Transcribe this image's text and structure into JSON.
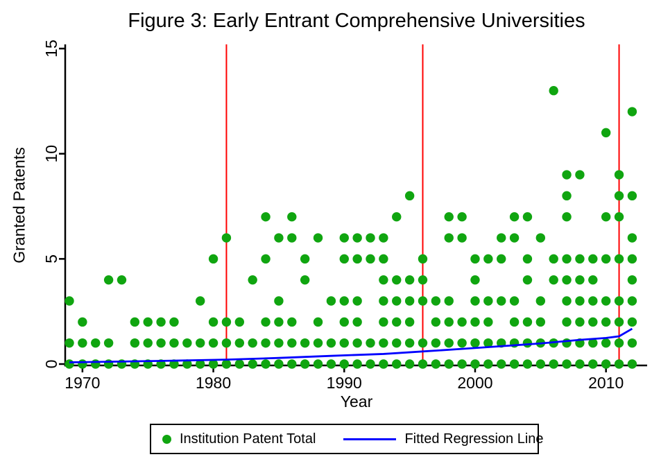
{
  "chart_data": {
    "type": "scatter",
    "title": "Figure 3: Early Entrant Comprehensive Universities",
    "xlabel": "Year",
    "ylabel": "Granted Patents",
    "xlim": [
      1968.5,
      2012.8
    ],
    "ylim": [
      0,
      15
    ],
    "x_ticks": [
      1970,
      1980,
      1990,
      2000,
      2010
    ],
    "y_ticks": [
      0,
      5,
      10,
      15
    ],
    "grid": "off",
    "legend_position": "bottom-center",
    "colors": {
      "scatter": "#10a510",
      "fit_line": "#0000ff",
      "vline": "#ff0000",
      "axis": "#000000",
      "background": "#ffffff"
    },
    "vlines": {
      "years": [
        1981,
        1996,
        2011
      ]
    },
    "scatter": {
      "name": "Institution Patent Total",
      "points_by_year": [
        [
          1969,
          [
            0,
            1,
            3
          ]
        ],
        [
          1970,
          [
            0,
            1,
            2
          ]
        ],
        [
          1971,
          [
            0,
            1
          ]
        ],
        [
          1972,
          [
            0,
            1,
            4
          ]
        ],
        [
          1973,
          [
            0,
            4
          ]
        ],
        [
          1974,
          [
            0,
            1,
            2
          ]
        ],
        [
          1975,
          [
            0,
            1,
            2
          ]
        ],
        [
          1976,
          [
            0,
            1,
            2
          ]
        ],
        [
          1977,
          [
            0,
            1,
            2
          ]
        ],
        [
          1978,
          [
            0,
            1
          ]
        ],
        [
          1979,
          [
            0,
            1,
            3
          ]
        ],
        [
          1980,
          [
            0,
            1,
            2,
            5
          ]
        ],
        [
          1981,
          [
            0,
            1,
            2,
            6
          ]
        ],
        [
          1982,
          [
            0,
            1,
            2
          ]
        ],
        [
          1983,
          [
            0,
            1,
            4
          ]
        ],
        [
          1984,
          [
            0,
            1,
            2,
            5,
            7
          ]
        ],
        [
          1985,
          [
            0,
            1,
            2,
            3,
            6
          ]
        ],
        [
          1986,
          [
            0,
            1,
            2,
            6,
            7
          ]
        ],
        [
          1987,
          [
            0,
            1,
            4,
            5
          ]
        ],
        [
          1988,
          [
            0,
            1,
            2,
            6
          ]
        ],
        [
          1989,
          [
            0,
            1,
            3
          ]
        ],
        [
          1990,
          [
            0,
            1,
            2,
            3,
            5,
            6
          ]
        ],
        [
          1991,
          [
            0,
            1,
            2,
            3,
            5,
            6
          ]
        ],
        [
          1992,
          [
            0,
            1,
            5,
            6
          ]
        ],
        [
          1993,
          [
            0,
            1,
            2,
            3,
            4,
            5,
            6
          ]
        ],
        [
          1994,
          [
            0,
            1,
            2,
            3,
            4,
            7
          ]
        ],
        [
          1995,
          [
            0,
            1,
            2,
            3,
            4,
            8
          ]
        ],
        [
          1996,
          [
            0,
            1,
            3,
            4,
            5
          ]
        ],
        [
          1997,
          [
            0,
            1,
            2,
            3
          ]
        ],
        [
          1998,
          [
            0,
            1,
            2,
            3,
            6,
            7
          ]
        ],
        [
          1999,
          [
            0,
            1,
            2,
            6,
            7
          ]
        ],
        [
          2000,
          [
            0,
            1,
            2,
            3,
            4,
            5
          ]
        ],
        [
          2001,
          [
            0,
            1,
            2,
            3,
            5
          ]
        ],
        [
          2002,
          [
            0,
            1,
            3,
            5,
            6
          ]
        ],
        [
          2003,
          [
            0,
            1,
            2,
            3,
            6,
            7
          ]
        ],
        [
          2004,
          [
            0,
            1,
            2,
            4,
            5,
            7
          ]
        ],
        [
          2005,
          [
            0,
            1,
            2,
            3,
            6
          ]
        ],
        [
          2006,
          [
            0,
            1,
            4,
            5,
            13
          ]
        ],
        [
          2007,
          [
            0,
            1,
            2,
            3,
            4,
            5,
            7,
            8,
            9
          ]
        ],
        [
          2008,
          [
            0,
            1,
            2,
            3,
            4,
            5,
            9
          ]
        ],
        [
          2009,
          [
            0,
            1,
            2,
            3,
            4,
            5
          ]
        ],
        [
          2010,
          [
            0,
            1,
            2,
            3,
            5,
            7,
            11
          ]
        ],
        [
          2011,
          [
            0,
            1,
            2,
            3,
            5,
            7,
            8,
            9
          ]
        ],
        [
          2012,
          [
            0,
            1,
            2,
            3,
            4,
            5,
            6,
            8,
            12
          ]
        ]
      ]
    },
    "fit_line": {
      "name": "Fitted Regression Line",
      "points": [
        [
          1969,
          0.08
        ],
        [
          1973,
          0.12
        ],
        [
          1977,
          0.16
        ],
        [
          1981,
          0.21
        ],
        [
          1985,
          0.29
        ],
        [
          1989,
          0.39
        ],
        [
          1993,
          0.48
        ],
        [
          1996,
          0.6
        ],
        [
          1999,
          0.72
        ],
        [
          2002,
          0.85
        ],
        [
          2005,
          0.98
        ],
        [
          2008,
          1.15
        ],
        [
          2010,
          1.24
        ],
        [
          2011,
          1.32
        ],
        [
          2012,
          1.68
        ]
      ]
    }
  }
}
